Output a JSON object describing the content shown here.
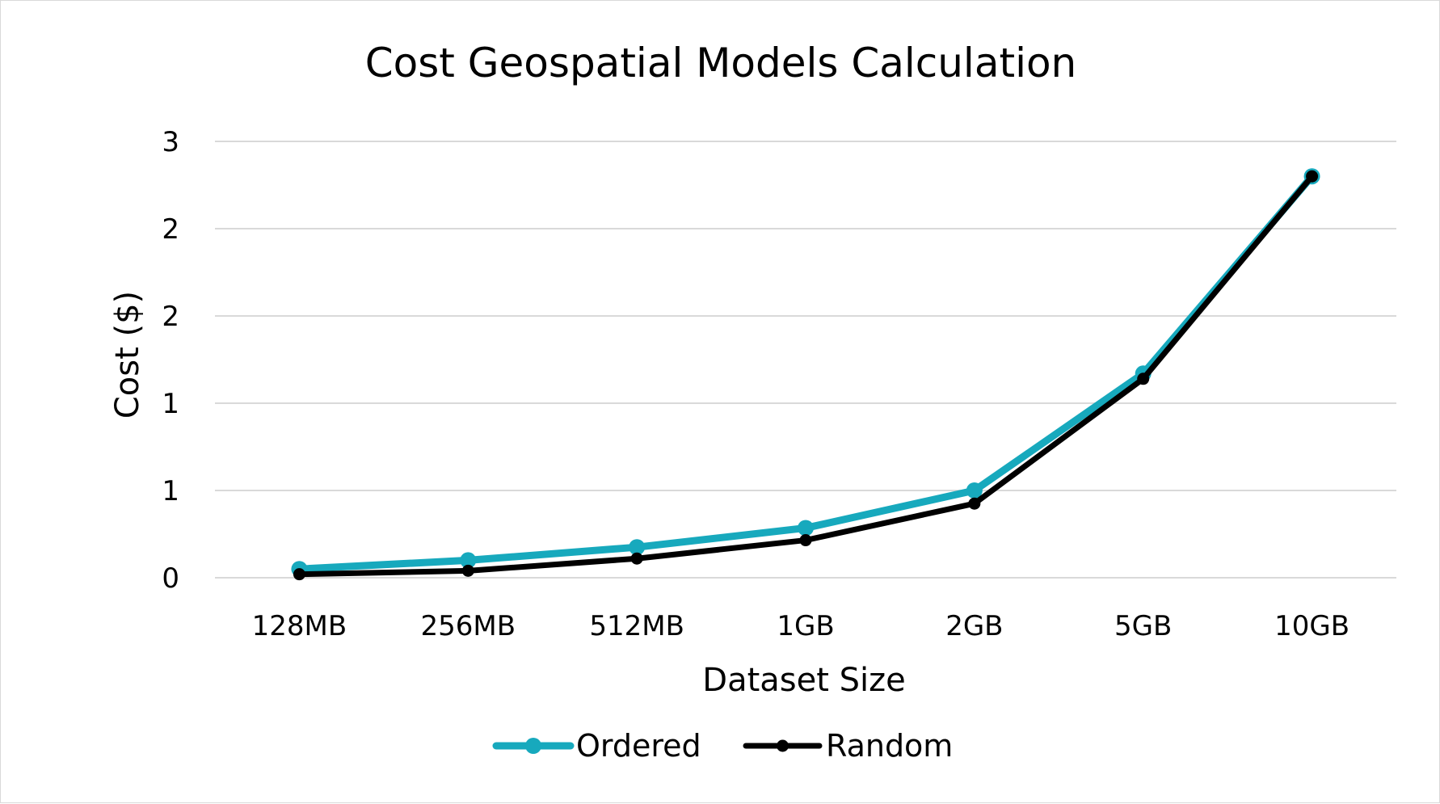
{
  "chart_data": {
    "type": "line",
    "title": "Cost Geospatial Models Calculation",
    "xlabel": "Dataset Size",
    "ylabel": "Cost ($)",
    "categories": [
      "128MB",
      "256MB",
      "512MB",
      "1GB",
      "2GB",
      "5GB",
      "10GB"
    ],
    "ylim": [
      0,
      2.5
    ],
    "y_ticks": [
      0,
      0.5,
      1,
      1.5,
      2,
      2.5
    ],
    "y_tick_labels": [
      "0",
      "1",
      "1",
      "2",
      "2",
      "3"
    ],
    "grid": true,
    "legend_position": "bottom",
    "series": [
      {
        "name": "Ordered",
        "color": "#17a9bd",
        "values": [
          0.05,
          0.1,
          0.175,
          0.285,
          0.5,
          1.17,
          2.3
        ]
      },
      {
        "name": "Random",
        "color": "#000000",
        "values": [
          0.02,
          0.04,
          0.11,
          0.215,
          0.425,
          1.14,
          2.3
        ]
      }
    ]
  }
}
